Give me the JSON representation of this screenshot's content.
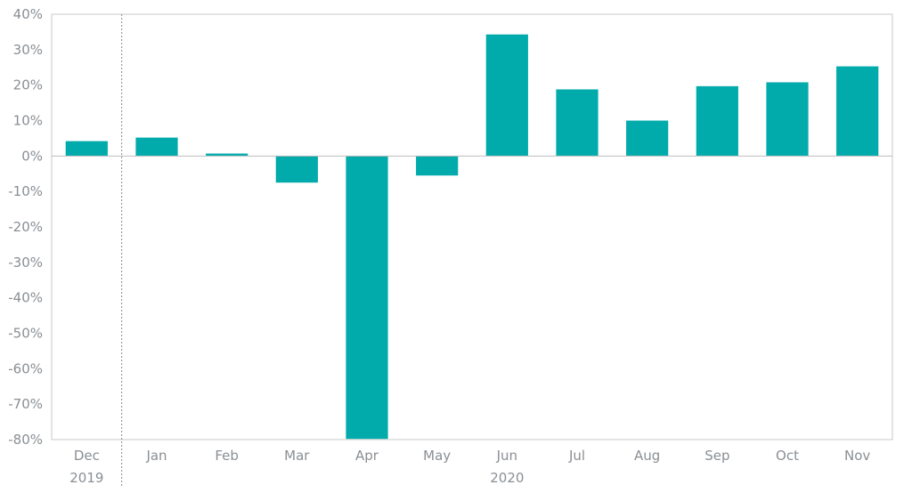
{
  "chart_data": {
    "type": "bar",
    "categories": [
      "Dec",
      "Jan",
      "Feb",
      "Mar",
      "Apr",
      "May",
      "Jun",
      "Jul",
      "Aug",
      "Sep",
      "Oct",
      "Nov"
    ],
    "values": [
      4.2,
      5.2,
      0.7,
      -7.5,
      -79.8,
      -5.5,
      34.3,
      18.8,
      10.0,
      19.7,
      20.8,
      25.3
    ],
    "year_labels": [
      {
        "label": "2019",
        "from_category": 0,
        "to_category": 0
      },
      {
        "label": "2020",
        "from_category": 1,
        "to_category": 11
      }
    ],
    "y_ticks": [
      40,
      30,
      20,
      10,
      0,
      -10,
      -20,
      -30,
      -40,
      -50,
      -60,
      -70,
      -80
    ],
    "y_tick_suffix": "%",
    "ylim": [
      -80,
      40
    ],
    "title": "",
    "xlabel": "",
    "ylabel": "",
    "grid": false,
    "legend": "none",
    "year_divider_after_category": 0,
    "colors": {
      "bar": "#02abab",
      "axis": "#c8c8c8",
      "zero_line": "#bdbdbd",
      "divider": "#8a8a8a",
      "text": "#8a8f94"
    }
  }
}
